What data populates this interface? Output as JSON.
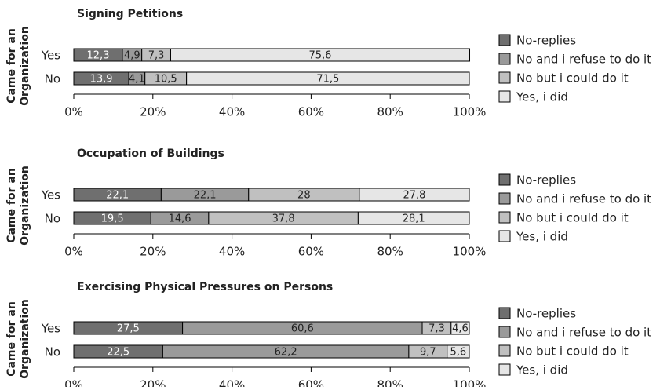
{
  "chart_data": [
    {
      "type": "stacked-bar-horizontal",
      "title": "Signing Petitions",
      "ylabel": [
        "Came for an",
        "Organization"
      ],
      "categories": [
        "Yes",
        "No"
      ],
      "series": [
        {
          "name": "No-replies",
          "color": "#6f6f6f",
          "values": [
            12.3,
            13.9
          ],
          "value_labels": [
            "12,3",
            "13,9"
          ]
        },
        {
          "name": "No and i refuse to do it",
          "color": "#9a9a9a",
          "values": [
            4.9,
            4.1
          ],
          "value_labels": [
            "4,9",
            "4,1"
          ]
        },
        {
          "name": "No but i could do it",
          "color": "#c0c0c0",
          "values": [
            7.3,
            10.5
          ],
          "value_labels": [
            "7,3",
            "10,5"
          ]
        },
        {
          "name": "Yes, i did",
          "color": "#e6e6e6",
          "values": [
            75.6,
            71.5
          ],
          "value_labels": [
            "75,6",
            "71,5"
          ]
        }
      ],
      "xlim": [
        0,
        100
      ],
      "xticks": [
        {
          "value": 0,
          "label": "0%"
        },
        {
          "value": 20,
          "label": "20%"
        },
        {
          "value": 40,
          "label": "40%"
        },
        {
          "value": 60,
          "label": "60%"
        },
        {
          "value": 80,
          "label": "80%"
        },
        {
          "value": 100,
          "label": "100%"
        }
      ],
      "legend": "right"
    },
    {
      "type": "stacked-bar-horizontal",
      "title": "Occupation of Buildings",
      "ylabel": [
        "Came for an",
        "Organization"
      ],
      "categories": [
        "Yes",
        "No"
      ],
      "series": [
        {
          "name": "No-replies",
          "color": "#6f6f6f",
          "values": [
            22.1,
            19.5
          ],
          "value_labels": [
            "22,1",
            "19,5"
          ]
        },
        {
          "name": "No and i refuse to do it",
          "color": "#9a9a9a",
          "values": [
            22.1,
            14.6
          ],
          "value_labels": [
            "22,1",
            "14,6"
          ]
        },
        {
          "name": "No but i could do it",
          "color": "#c0c0c0",
          "values": [
            28,
            37.8
          ],
          "value_labels": [
            "28",
            "37,8"
          ]
        },
        {
          "name": "Yes, i did",
          "color": "#e6e6e6",
          "values": [
            27.8,
            28.1
          ],
          "value_labels": [
            "27,8",
            "28,1"
          ]
        }
      ],
      "xlim": [
        0,
        100
      ],
      "xticks": [
        {
          "value": 0,
          "label": "0%"
        },
        {
          "value": 20,
          "label": "20%"
        },
        {
          "value": 40,
          "label": "40%"
        },
        {
          "value": 60,
          "label": "60%"
        },
        {
          "value": 80,
          "label": "80%"
        },
        {
          "value": 100,
          "label": "100%"
        }
      ],
      "legend": "right"
    },
    {
      "type": "stacked-bar-horizontal",
      "title": "Exercising Physical Pressures on Persons",
      "ylabel": [
        "Came for an",
        "Organization"
      ],
      "categories": [
        "Yes",
        "No"
      ],
      "series": [
        {
          "name": "No-replies",
          "color": "#6f6f6f",
          "values": [
            27.5,
            22.5
          ],
          "value_labels": [
            "27,5",
            "22,5"
          ]
        },
        {
          "name": "No and i refuse to do it",
          "color": "#9a9a9a",
          "values": [
            60.6,
            62.2
          ],
          "value_labels": [
            "60,6",
            "62,2"
          ]
        },
        {
          "name": "No but i could do it",
          "color": "#c0c0c0",
          "values": [
            7.3,
            9.7
          ],
          "value_labels": [
            "7,3",
            "9,7"
          ]
        },
        {
          "name": "Yes, i did",
          "color": "#e6e6e6",
          "values": [
            4.6,
            5.6
          ],
          "value_labels": [
            "4,6",
            "5,6"
          ]
        }
      ],
      "xlim": [
        0,
        100
      ],
      "xticks": [
        {
          "value": 0,
          "label": "0%"
        },
        {
          "value": 20,
          "label": "20%"
        },
        {
          "value": 40,
          "label": "40%"
        },
        {
          "value": 60,
          "label": "60%"
        },
        {
          "value": 80,
          "label": "80%"
        },
        {
          "value": 100,
          "label": "100%"
        }
      ],
      "legend": "right"
    }
  ]
}
